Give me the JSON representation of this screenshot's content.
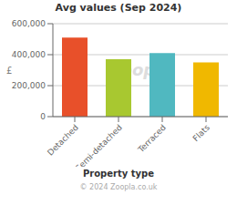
{
  "chart_data": {
    "type": "bar",
    "title": "Avg values (Sep 2024)",
    "categories": [
      "Detached",
      "Semi-detached",
      "Terraced",
      "Flats"
    ],
    "values": [
      510000,
      370000,
      410000,
      350000
    ],
    "colors": [
      "#E8502A",
      "#A8C830",
      "#50B8C0",
      "#F0B800"
    ],
    "ylabel": "£",
    "xlabel": "Property type",
    "ylim": [
      0,
      600000
    ],
    "yticks": [
      0,
      {
        "value": 200000,
        "label": "200,000"
      },
      {
        "value": 400000,
        "label": "400,000"
      },
      {
        "value": 600000,
        "label": "600,000"
      }
    ],
    "grid": true,
    "annotations": [
      "Zoopla",
      "© 2024 Zoopla.co.uk"
    ]
  }
}
